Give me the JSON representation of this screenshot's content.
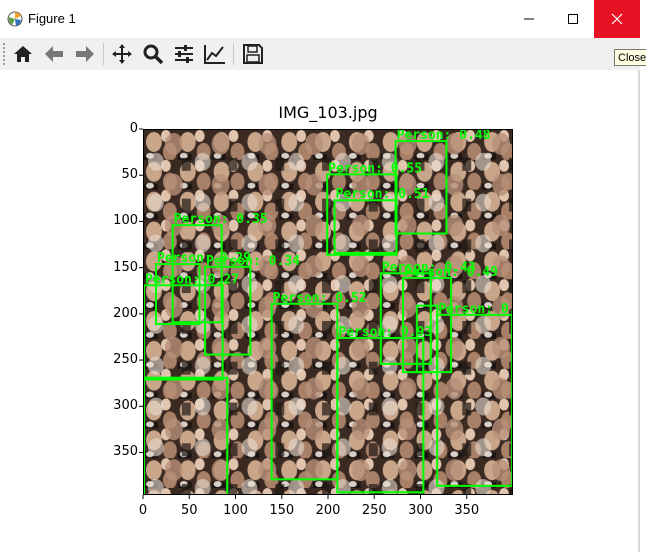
{
  "window": {
    "title": "Figure 1",
    "app_icon": "matplotlib-icon",
    "controls": [
      "minimize-icon",
      "maximize-icon",
      "close-icon"
    ]
  },
  "toolbar": {
    "buttons": [
      {
        "name": "home-button",
        "icon": "home-icon",
        "label": "Home"
      },
      {
        "name": "back-button",
        "icon": "arrow-left-icon",
        "label": "Back"
      },
      {
        "name": "forward-button",
        "icon": "arrow-right-icon",
        "label": "Forward"
      },
      {
        "name": "pan-button",
        "icon": "move-icon",
        "label": "Pan"
      },
      {
        "name": "zoom-button",
        "icon": "magnifier-icon",
        "label": "Zoom"
      },
      {
        "name": "subplots-button",
        "icon": "sliders-icon",
        "label": "Subplots"
      },
      {
        "name": "edit-axis-button",
        "icon": "line-chart-icon",
        "label": "Customize"
      },
      {
        "name": "save-button",
        "icon": "floppy-disk-icon",
        "label": "Save"
      }
    ]
  },
  "tooltip": {
    "text": "Close"
  },
  "figure": {
    "title": "IMG_103.jpg",
    "xticks": [
      "0",
      "50",
      "100",
      "150",
      "200",
      "250",
      "300",
      "350"
    ],
    "yticks": [
      "0",
      "50",
      "100",
      "150",
      "200",
      "250",
      "300",
      "350"
    ],
    "box_color": "#00ff00"
  },
  "detections": [
    {
      "label": "Person: 0.48",
      "x1": 272,
      "y1": 12,
      "x2": 327,
      "y2": 112
    },
    {
      "label": "Person: 0.55",
      "x1": 198,
      "y1": 48,
      "x2": 273,
      "y2": 135
    },
    {
      "label": "Person: 0.51",
      "x1": 206,
      "y1": 76,
      "x2": 273,
      "y2": 133
    },
    {
      "label": "Person: 0.35",
      "x1": 31,
      "y1": 103,
      "x2": 84,
      "y2": 208
    },
    {
      "label": "Person: 0.34",
      "x1": 66,
      "y1": 148,
      "x2": 115,
      "y2": 243
    },
    {
      "label": "Person: 0.29",
      "x1": 13,
      "y1": 145,
      "x2": 60,
      "y2": 210
    },
    {
      "label": "Person: 0.27",
      "x1": 0,
      "y1": 168,
      "x2": 85,
      "y2": 270
    },
    {
      "label": "Person: 0.43",
      "x1": 256,
      "y1": 155,
      "x2": 310,
      "y2": 253
    },
    {
      "label": "Person: 0.49",
      "x1": 280,
      "y1": 160,
      "x2": 332,
      "y2": 262
    },
    {
      "label": "Person: 0.52",
      "x1": 138,
      "y1": 188,
      "x2": 209,
      "y2": 378
    },
    {
      "label": "Person: 0.93",
      "x1": 209,
      "y1": 225,
      "x2": 302,
      "y2": 392
    },
    {
      "label": "Person: 0.",
      "x1": 317,
      "y1": 200,
      "x2": 398,
      "y2": 385
    },
    {
      "label": "",
      "x1": 0,
      "y1": 268,
      "x2": 90,
      "y2": 395
    },
    {
      "label": "",
      "x1": 295,
      "y1": 190,
      "x2": 317,
      "y2": 262
    }
  ]
}
